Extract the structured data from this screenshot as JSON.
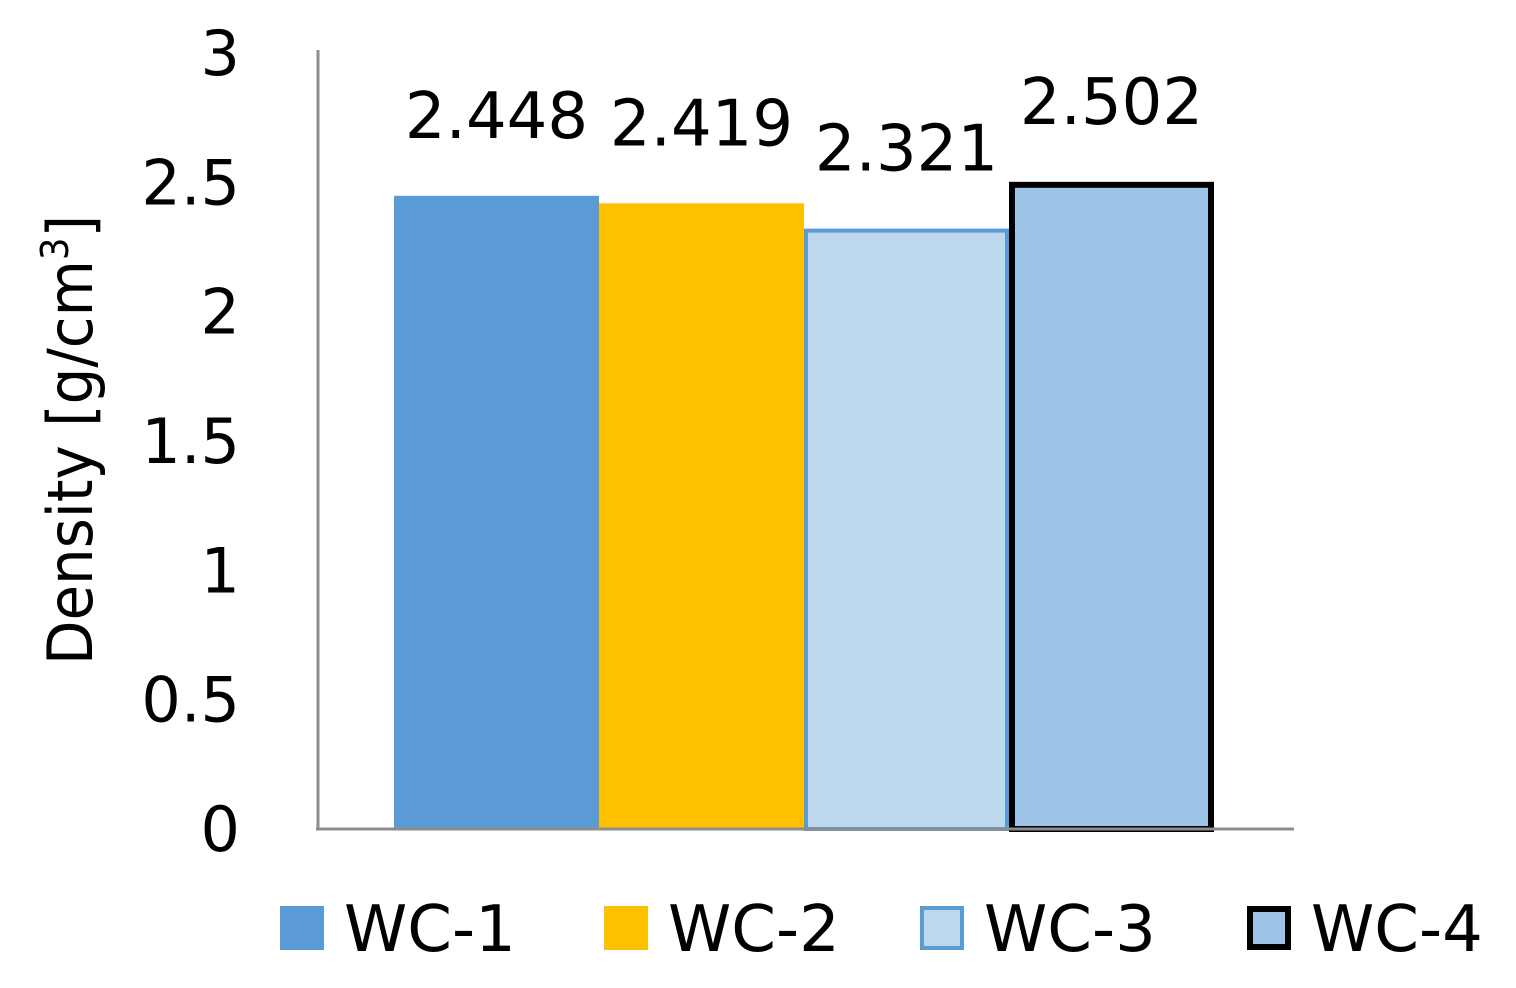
{
  "chart_data": {
    "type": "bar",
    "title": "",
    "xlabel": "",
    "ylabel": {
      "prefix": "Density [g/cm",
      "superscript": "3",
      "suffix": "]"
    },
    "ylim": [
      0,
      3
    ],
    "yticks": [
      "0",
      "0.5",
      "1",
      "1.5",
      "2",
      "2.5",
      "3"
    ],
    "grid": false,
    "legend_position": "bottom",
    "series": [
      {
        "name": "WC-1",
        "values": [
          2.448
        ],
        "label": "2.448",
        "fill": "#5b9bd5",
        "stroke": "#5b9bd5"
      },
      {
        "name": "WC-2",
        "values": [
          2.419
        ],
        "label": "2.419",
        "fill": "#ffc000",
        "stroke": "#ffc000"
      },
      {
        "name": "WC-3",
        "values": [
          2.321
        ],
        "label": "2.321",
        "fill": "#bdd7ee",
        "stroke": "#5b9bd5"
      },
      {
        "name": "WC-4",
        "values": [
          2.502
        ],
        "label": "2.502",
        "fill": "#9dc3e6",
        "stroke": "#000000"
      }
    ]
  }
}
